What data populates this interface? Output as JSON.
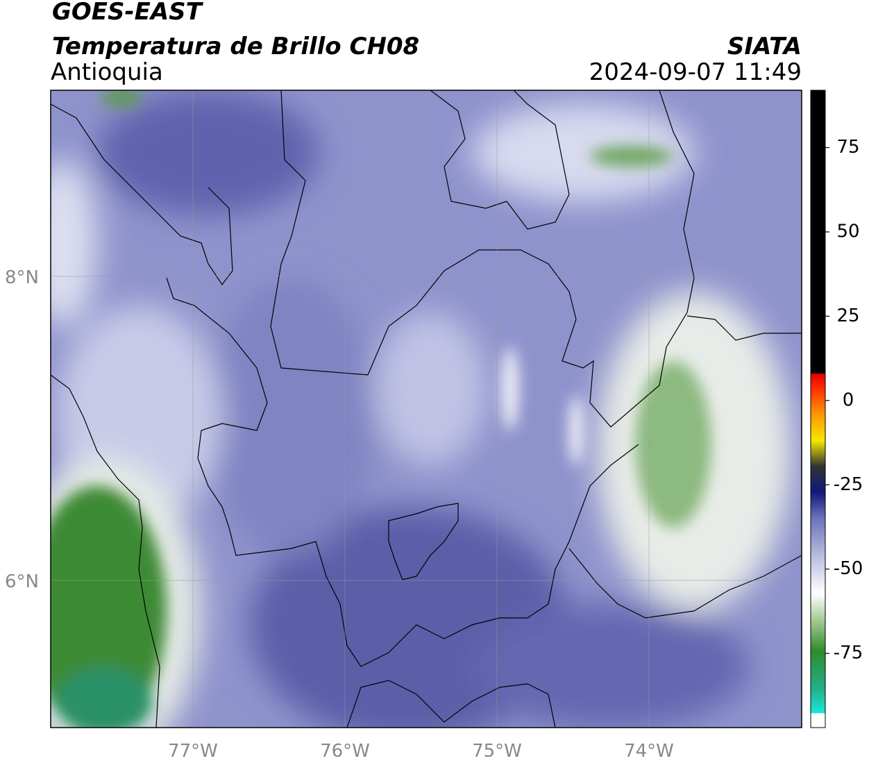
{
  "header": {
    "source": "GOES-EAST",
    "title": "Temperatura de Brillo CH08",
    "region": "Antioquia",
    "agency": "SIATA",
    "datetime": "2024-09-07 11:49"
  },
  "map": {
    "lat_labels": [
      "8°N",
      "6°N"
    ],
    "lon_labels": [
      "77°W",
      "76°W",
      "75°W",
      "74°W"
    ]
  },
  "colorbar": {
    "lim": [
      -97,
      92
    ],
    "ticks": [
      -75,
      -50,
      -25,
      0,
      25,
      50,
      75
    ]
  }
}
